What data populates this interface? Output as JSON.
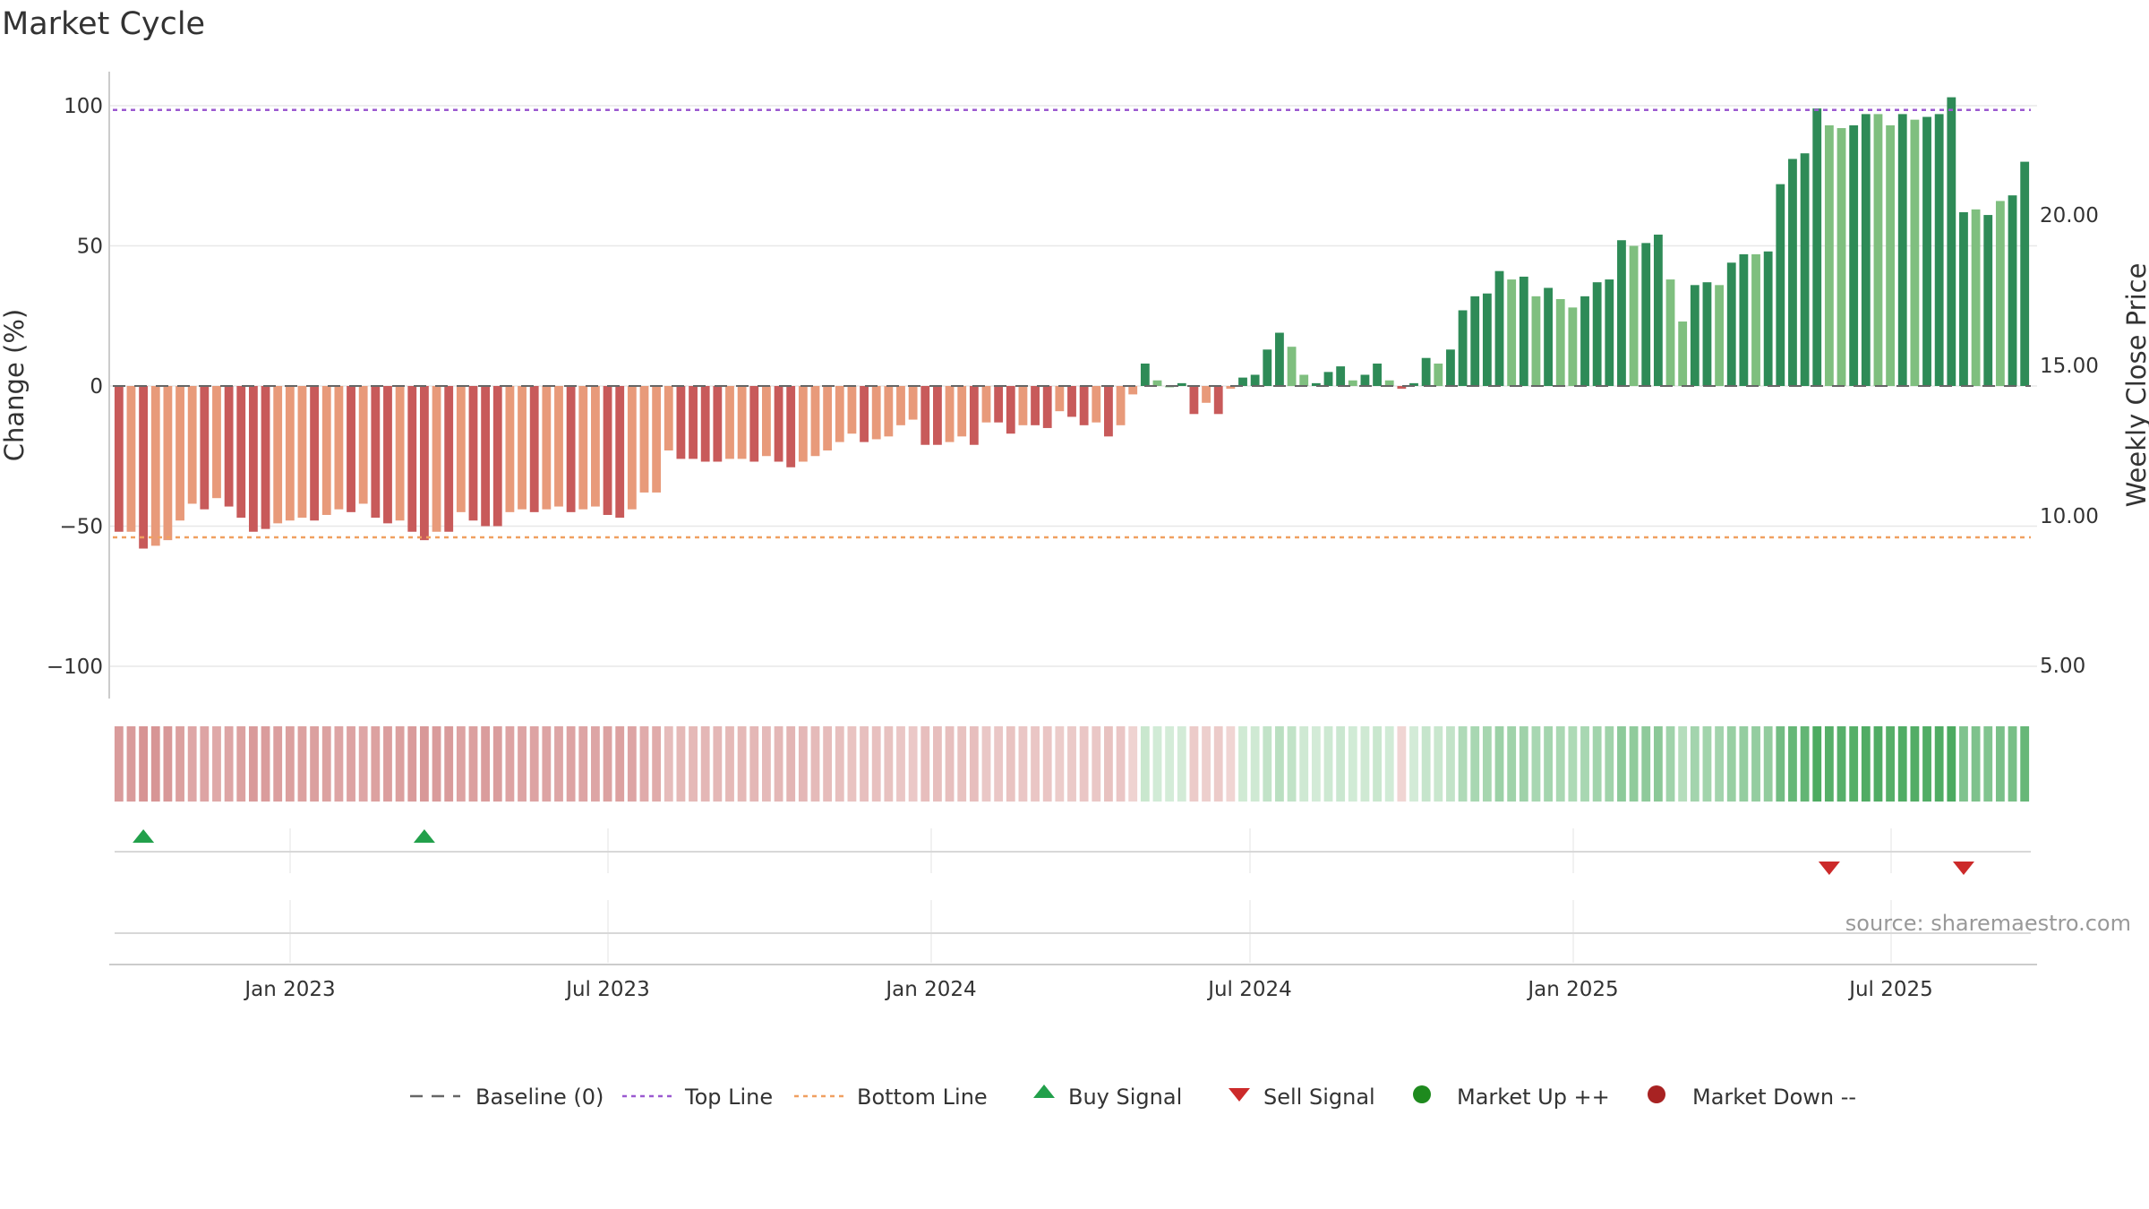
{
  "chart_data": {
    "type": "bar",
    "title": "Market Cycle",
    "ylabel": "Change (%)",
    "ylabel_right": "Weekly Close Price",
    "ylim": [
      -112,
      112
    ],
    "yticks": [
      {
        "value": 100,
        "label": "100"
      },
      {
        "value": 50,
        "label": "50"
      },
      {
        "value": 0,
        "label": "0"
      },
      {
        "value": -50,
        "label": "−50"
      },
      {
        "value": -100,
        "label": "−100"
      }
    ],
    "right_yticks": [
      "20.00",
      "15.00",
      "10.00",
      "5.00"
    ],
    "xticks": [
      "Jan 2023",
      "Jul 2023",
      "Jan 2024",
      "Jul 2024",
      "Jan 2025",
      "Jul 2025"
    ],
    "top_line": 98.5,
    "bottom_line": -54,
    "baseline": 0,
    "values": [
      -52,
      -52,
      -58,
      -57,
      -55,
      -48,
      -42,
      -44,
      -40,
      -43,
      -47,
      -52,
      -51,
      -49,
      -48,
      -47,
      -48,
      -46,
      -44,
      -45,
      -42,
      -47,
      -49,
      -48,
      -52,
      -55,
      -52,
      -52,
      -45,
      -48,
      -50,
      -50,
      -45,
      -44,
      -45,
      -44,
      -43,
      -45,
      -44,
      -43,
      -46,
      -47,
      -44,
      -38,
      -38,
      -23,
      -26,
      -26,
      -27,
      -27,
      -26,
      -26,
      -27,
      -25,
      -27,
      -29,
      -27,
      -25,
      -23,
      -20,
      -17,
      -20,
      -19,
      -18,
      -14,
      -12,
      -21,
      -21,
      -20,
      -18,
      -21,
      -13,
      -13,
      -17,
      -14,
      -14,
      -15,
      -9,
      -11,
      -14,
      -13,
      -18,
      -14,
      -3,
      8,
      2,
      0,
      1,
      -10,
      -6,
      -10,
      -1,
      3,
      4,
      13,
      19,
      14,
      4,
      1,
      5,
      7,
      2,
      4,
      8,
      2,
      -1,
      1,
      10,
      8,
      13,
      27,
      32,
      33,
      41,
      38,
      39,
      32,
      35,
      31,
      28,
      32,
      37,
      38,
      52,
      50,
      51,
      54,
      38,
      23,
      36,
      37,
      36,
      44,
      47,
      47,
      48,
      72,
      81,
      83,
      99,
      93,
      92,
      93,
      97,
      97,
      93,
      97,
      95,
      96,
      97,
      103,
      62,
      63,
      61,
      66,
      68,
      80
    ],
    "bar_colors": [
      "#c85a5a",
      "#e89a7a",
      "#c85a5a",
      "#e89a7a",
      "#e89a7a",
      "#e89a7a",
      "#e89a7a",
      "#c85a5a",
      "#e89a7a",
      "#c85a5a",
      "#c85a5a",
      "#c85a5a",
      "#c85a5a",
      "#e89a7a",
      "#e89a7a",
      "#e89a7a",
      "#c85a5a",
      "#e89a7a",
      "#e89a7a",
      "#c85a5a",
      "#e89a7a",
      "#c85a5a",
      "#c85a5a",
      "#e89a7a",
      "#c85a5a",
      "#c85a5a",
      "#e89a7a",
      "#c85a5a",
      "#e89a7a",
      "#c85a5a",
      "#c85a5a",
      "#c85a5a",
      "#e89a7a",
      "#e89a7a",
      "#c85a5a",
      "#e89a7a",
      "#e89a7a",
      "#c85a5a",
      "#e89a7a",
      "#e89a7a",
      "#c85a5a",
      "#c85a5a",
      "#e89a7a",
      "#e89a7a",
      "#e89a7a",
      "#e89a7a",
      "#c85a5a",
      "#c85a5a",
      "#c85a5a",
      "#c85a5a",
      "#e89a7a",
      "#e89a7a",
      "#c85a5a",
      "#e89a7a",
      "#c85a5a",
      "#c85a5a",
      "#e89a7a",
      "#e89a7a",
      "#e89a7a",
      "#e89a7a",
      "#e89a7a",
      "#c85a5a",
      "#e89a7a",
      "#e89a7a",
      "#e89a7a",
      "#e89a7a",
      "#c85a5a",
      "#c85a5a",
      "#e89a7a",
      "#e89a7a",
      "#c85a5a",
      "#e89a7a",
      "#c85a5a",
      "#c85a5a",
      "#e89a7a",
      "#c85a5a",
      "#c85a5a",
      "#e89a7a",
      "#c85a5a",
      "#c85a5a",
      "#e89a7a",
      "#c85a5a",
      "#e89a7a",
      "#e89a7a",
      "#2e8b57",
      "#7fbf7f",
      "#7fbf7f",
      "#2e8b57",
      "#c85a5a",
      "#e89a7a",
      "#c85a5a",
      "#e89a7a",
      "#2e8b57",
      "#2e8b57",
      "#2e8b57",
      "#2e8b57",
      "#7fbf7f",
      "#7fbf7f",
      "#2e8b57",
      "#2e8b57",
      "#2e8b57",
      "#7fbf7f",
      "#2e8b57",
      "#2e8b57",
      "#7fbf7f",
      "#c85a5a",
      "#2e8b57",
      "#2e8b57",
      "#7fbf7f",
      "#2e8b57",
      "#2e8b57",
      "#2e8b57",
      "#2e8b57",
      "#2e8b57",
      "#7fbf7f",
      "#2e8b57",
      "#7fbf7f",
      "#2e8b57",
      "#7fbf7f",
      "#7fbf7f",
      "#2e8b57",
      "#2e8b57",
      "#2e8b57",
      "#2e8b57",
      "#7fbf7f",
      "#2e8b57",
      "#2e8b57",
      "#7fbf7f",
      "#7fbf7f",
      "#2e8b57",
      "#2e8b57",
      "#7fbf7f",
      "#2e8b57",
      "#2e8b57",
      "#7fbf7f",
      "#2e8b57",
      "#2e8b57",
      "#2e8b57",
      "#2e8b57",
      "#2e8b57",
      "#7fbf7f",
      "#7fbf7f",
      "#2e8b57",
      "#2e8b57",
      "#7fbf7f",
      "#7fbf7f",
      "#2e8b57",
      "#7fbf7f",
      "#2e8b57",
      "#2e8b57",
      "#2e8b57",
      "#2e8b57",
      "#7fbf7f",
      "#2e8b57",
      "#7fbf7f",
      "#2e8b57",
      "#2e8b57",
      "#2e8b57"
    ],
    "buy_signals": [
      2,
      25
    ],
    "sell_signals": [
      140,
      151
    ],
    "heat_strip": "relative strength per week shown as a colour band (red = weak, green = strong)",
    "legend": [
      {
        "label": "Baseline (0)",
        "marker": "dash-dark"
      },
      {
        "label": "Top Line",
        "marker": "dash-purple"
      },
      {
        "label": "Bottom Line",
        "marker": "dash-orange"
      },
      {
        "label": "Buy Signal",
        "marker": "triangle-up-green"
      },
      {
        "label": "Sell Signal",
        "marker": "triangle-down-red"
      },
      {
        "label": "Market Up ++",
        "marker": "circle-green"
      },
      {
        "label": "Market Down --",
        "marker": "circle-red"
      }
    ],
    "source": "source: sharemaestro.com",
    "colors": {
      "down_dark": "#c85a5a",
      "down_light": "#e89a7a",
      "up_dark": "#2e8b57",
      "up_light": "#7fbf7f",
      "top_line": "#9b59d0",
      "bottom_line": "#f0a060",
      "buy": "#22a04b",
      "sell": "#cc2a2a",
      "market_up": "#1e8a1e",
      "market_down": "#a82222"
    }
  }
}
